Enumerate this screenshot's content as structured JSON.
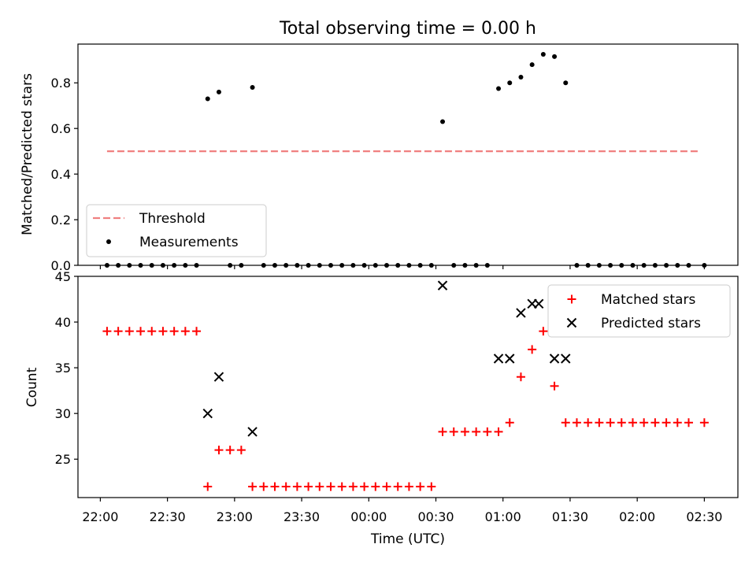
{
  "chart_data": [
    {
      "type": "scatter",
      "title": "Total observing time = 0.00 h",
      "xlabel": "",
      "ylabel": "Matched/Predicted stars",
      "ylim": [
        0,
        0.97
      ],
      "yticks": [
        0.0,
        0.2,
        0.4,
        0.6,
        0.8
      ],
      "ytick_labels": [
        "0.0",
        "0.2",
        "0.4",
        "0.6",
        "0.8"
      ],
      "grid": false,
      "legend_position": "lower-left",
      "legend": [
        "Threshold",
        "Measurements"
      ],
      "threshold": {
        "name": "Threshold",
        "value": 0.5,
        "x_start": "22:03",
        "x_end": "02:28",
        "color": "#f08080",
        "style": "dashed"
      },
      "series": [
        {
          "name": "Measurements",
          "marker": "dot",
          "color": "#000000",
          "points": [
            [
              "22:03",
              0
            ],
            [
              "22:08",
              0
            ],
            [
              "22:13",
              0
            ],
            [
              "22:18",
              0
            ],
            [
              "22:23",
              0
            ],
            [
              "22:28",
              0
            ],
            [
              "22:33",
              0
            ],
            [
              "22:38",
              0
            ],
            [
              "22:43",
              0
            ],
            [
              "22:48",
              0.73
            ],
            [
              "22:53",
              0.76
            ],
            [
              "22:58",
              0
            ],
            [
              "23:03",
              0
            ],
            [
              "23:08",
              0.78
            ],
            [
              "23:13",
              0
            ],
            [
              "23:18",
              0
            ],
            [
              "23:23",
              0
            ],
            [
              "23:28",
              0
            ],
            [
              "23:33",
              0
            ],
            [
              "23:38",
              0
            ],
            [
              "23:43",
              0
            ],
            [
              "23:48",
              0
            ],
            [
              "23:53",
              0
            ],
            [
              "23:58",
              0
            ],
            [
              "00:03",
              0
            ],
            [
              "00:08",
              0
            ],
            [
              "00:13",
              0
            ],
            [
              "00:18",
              0
            ],
            [
              "00:23",
              0
            ],
            [
              "00:28",
              0
            ],
            [
              "00:33",
              0.63
            ],
            [
              "00:38",
              0
            ],
            [
              "00:43",
              0
            ],
            [
              "00:48",
              0
            ],
            [
              "00:53",
              0
            ],
            [
              "00:58",
              0.775
            ],
            [
              "01:03",
              0.8
            ],
            [
              "01:08",
              0.825
            ],
            [
              "01:13",
              0.88
            ],
            [
              "01:18",
              0.925
            ],
            [
              "01:23",
              0.915
            ],
            [
              "01:28",
              0.8
            ],
            [
              "01:33",
              0
            ],
            [
              "01:38",
              0
            ],
            [
              "01:43",
              0
            ],
            [
              "01:48",
              0
            ],
            [
              "01:53",
              0
            ],
            [
              "01:58",
              0
            ],
            [
              "02:03",
              0
            ],
            [
              "02:08",
              0
            ],
            [
              "02:13",
              0
            ],
            [
              "02:18",
              0
            ],
            [
              "02:23",
              0
            ],
            [
              "02:30",
              0
            ]
          ]
        }
      ]
    },
    {
      "type": "scatter",
      "title": "",
      "xlabel": "Time (UTC)",
      "ylabel": "Count",
      "ylim": [
        20.8,
        45
      ],
      "yticks": [
        25,
        30,
        35,
        40,
        45
      ],
      "ytick_labels": [
        "25",
        "30",
        "35",
        "40",
        "45"
      ],
      "xticks": [
        "22:00",
        "22:30",
        "23:00",
        "23:30",
        "00:00",
        "00:30",
        "01:00",
        "01:30",
        "02:00",
        "02:30"
      ],
      "grid": false,
      "legend_position": "top-right",
      "legend": [
        "Matched stars",
        "Predicted stars"
      ],
      "series": [
        {
          "name": "Matched stars",
          "marker": "plus",
          "color": "#ff0000",
          "points": [
            [
              "22:03",
              39
            ],
            [
              "22:08",
              39
            ],
            [
              "22:13",
              39
            ],
            [
              "22:18",
              39
            ],
            [
              "22:23",
              39
            ],
            [
              "22:28",
              39
            ],
            [
              "22:33",
              39
            ],
            [
              "22:38",
              39
            ],
            [
              "22:43",
              39
            ],
            [
              "22:48",
              22
            ],
            [
              "22:53",
              26
            ],
            [
              "22:58",
              26
            ],
            [
              "23:03",
              26
            ],
            [
              "23:08",
              22
            ],
            [
              "23:13",
              22
            ],
            [
              "23:18",
              22
            ],
            [
              "23:23",
              22
            ],
            [
              "23:28",
              22
            ],
            [
              "23:33",
              22
            ],
            [
              "23:38",
              22
            ],
            [
              "23:43",
              22
            ],
            [
              "23:48",
              22
            ],
            [
              "23:53",
              22
            ],
            [
              "23:58",
              22
            ],
            [
              "00:03",
              22
            ],
            [
              "00:08",
              22
            ],
            [
              "00:13",
              22
            ],
            [
              "00:18",
              22
            ],
            [
              "00:23",
              22
            ],
            [
              "00:28",
              22
            ],
            [
              "00:33",
              28
            ],
            [
              "00:38",
              28
            ],
            [
              "00:43",
              28
            ],
            [
              "00:48",
              28
            ],
            [
              "00:53",
              28
            ],
            [
              "00:58",
              28
            ],
            [
              "01:03",
              29
            ],
            [
              "01:08",
              34
            ],
            [
              "01:13",
              37
            ],
            [
              "01:18",
              39
            ],
            [
              "01:23",
              33
            ],
            [
              "01:28",
              29
            ],
            [
              "01:33",
              29
            ],
            [
              "01:38",
              29
            ],
            [
              "01:43",
              29
            ],
            [
              "01:48",
              29
            ],
            [
              "01:53",
              29
            ],
            [
              "01:58",
              29
            ],
            [
              "02:03",
              29
            ],
            [
              "02:08",
              29
            ],
            [
              "02:13",
              29
            ],
            [
              "02:18",
              29
            ],
            [
              "02:23",
              29
            ],
            [
              "02:30",
              29
            ]
          ]
        },
        {
          "name": "Predicted stars",
          "marker": "x",
          "color": "#000000",
          "points": [
            [
              "22:48",
              30
            ],
            [
              "22:53",
              34
            ],
            [
              "23:08",
              28
            ],
            [
              "00:33",
              44
            ],
            [
              "00:58",
              36
            ],
            [
              "01:03",
              36
            ],
            [
              "01:08",
              41
            ],
            [
              "01:13",
              42
            ],
            [
              "01:16",
              42
            ],
            [
              "01:23",
              36
            ],
            [
              "01:28",
              36
            ]
          ]
        }
      ]
    }
  ]
}
